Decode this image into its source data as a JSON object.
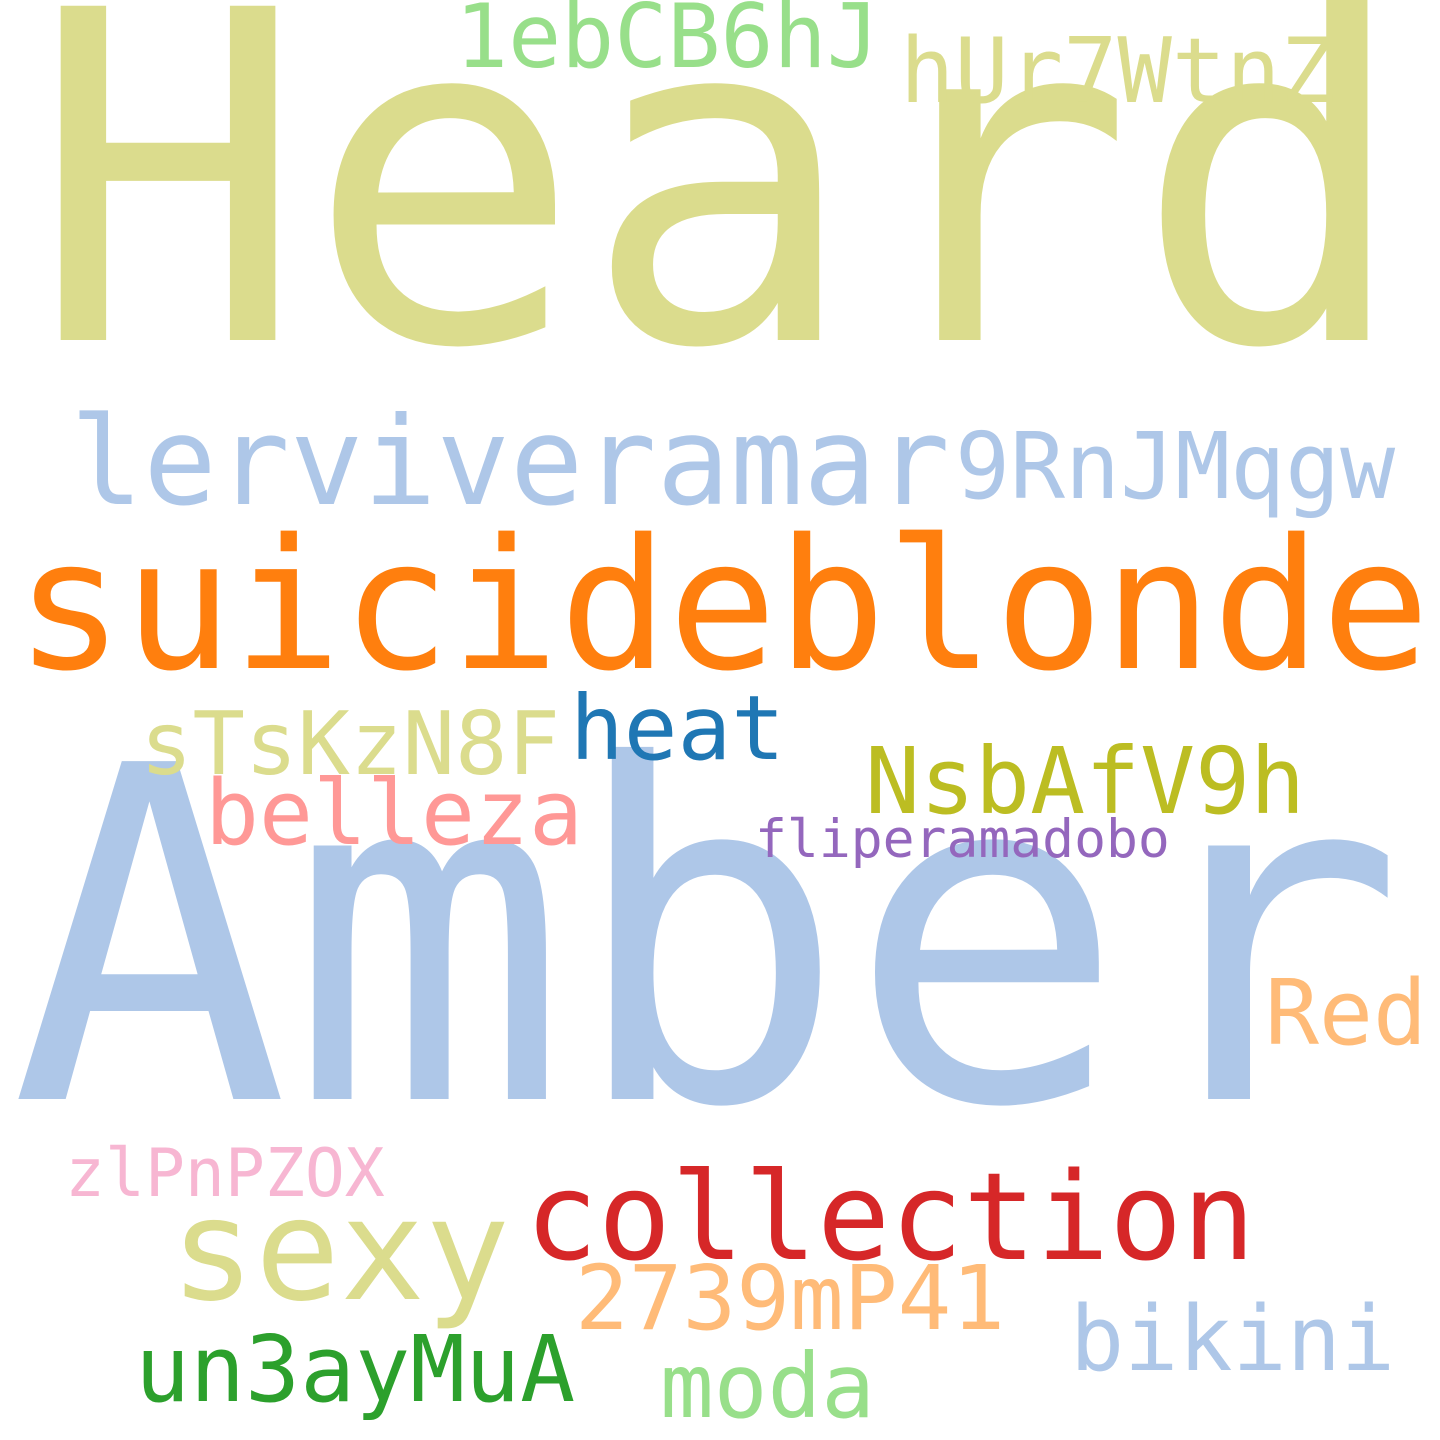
{
  "words": [
    {
      "text": "Heard",
      "color": "#dbdc8d"
    },
    {
      "text": "Amber",
      "color": "#aec7e8"
    },
    {
      "text": "suicideblonde",
      "color": "#ff7f0e"
    },
    {
      "text": "lerviveramar",
      "color": "#aec7e8"
    },
    {
      "text": "9RnJMqgw",
      "color": "#aec7e8"
    },
    {
      "text": "1ebCB6hJ",
      "color": "#98df8a"
    },
    {
      "text": "hUr7WtnZ",
      "color": "#dbdc8d"
    },
    {
      "text": "sTsKzN8F",
      "color": "#dbdc8d"
    },
    {
      "text": "heat",
      "color": "#1f77b4"
    },
    {
      "text": "NsbAfV9h",
      "color": "#bcbd22"
    },
    {
      "text": "belleza",
      "color": "#ff9896"
    },
    {
      "text": "fliperamadobo",
      "color": "#9467bd"
    },
    {
      "text": "Red",
      "color": "#ffbb78"
    },
    {
      "text": "zlPnPZOX",
      "color": "#f7b6d2"
    },
    {
      "text": "sexy",
      "color": "#dbdc8d"
    },
    {
      "text": "collection",
      "color": "#d62728"
    },
    {
      "text": "2739mP41",
      "color": "#ffbb78"
    },
    {
      "text": "bikini",
      "color": "#aec7e8"
    },
    {
      "text": "un3ayMuA",
      "color": "#2ca02c"
    },
    {
      "text": "moda",
      "color": "#98df8a"
    }
  ]
}
